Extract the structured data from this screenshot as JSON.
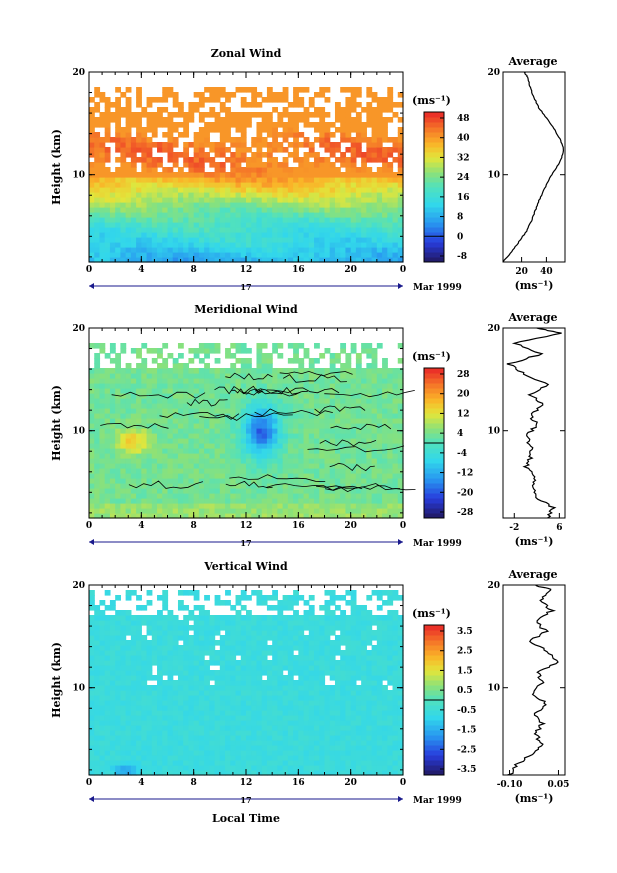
{
  "figure": {
    "shared_xlabel": "Local Time",
    "date_label": "Mar 1999",
    "day_label": "17",
    "average_title": "Average",
    "unit_label": "(ms⁻¹)",
    "ylabel": "Height (km)"
  },
  "chart_data": [
    {
      "type": "heatmap",
      "title": "Zonal Wind",
      "xlabel": "Local Time",
      "ylabel": "Height (km)",
      "x_ticks": [
        "0",
        "4",
        "8",
        "12",
        "16",
        "20",
        "0"
      ],
      "y_ticks": [
        "20",
        "10"
      ],
      "xlim": [
        0,
        24
      ],
      "ylim": [
        1.5,
        20
      ],
      "colorbar": {
        "label": "(ms⁻¹)",
        "ticks": [
          "48",
          "40",
          "32",
          "24",
          "16",
          "8",
          "0",
          "-8"
        ],
        "range": [
          -8,
          52
        ]
      },
      "missing_data_above_km": 16,
      "profile": {
        "title": "Average",
        "xlabel": "(ms⁻¹)",
        "x_ticks": [
          "20",
          "40"
        ],
        "xlim": [
          5,
          55
        ],
        "y_ticks": [
          "20",
          "10"
        ],
        "points": [
          [
            5,
            1.5
          ],
          [
            12,
            2.5
          ],
          [
            18,
            3.5
          ],
          [
            24,
            4.5
          ],
          [
            28,
            5.5
          ],
          [
            31,
            6.5
          ],
          [
            34,
            7.5
          ],
          [
            38,
            8.5
          ],
          [
            42,
            9.5
          ],
          [
            47,
            10.5
          ],
          [
            52,
            11.5
          ],
          [
            54,
            12.5
          ],
          [
            51,
            13.5
          ],
          [
            46,
            14.5
          ],
          [
            40,
            15.5
          ],
          [
            34,
            16.5
          ],
          [
            30,
            17.5
          ],
          [
            27,
            18.5
          ],
          [
            25,
            19.5
          ],
          [
            22,
            20
          ]
        ]
      }
    },
    {
      "type": "heatmap",
      "title": "Meridional Wind",
      "xlabel": "Local Time",
      "ylabel": "Height (km)",
      "x_ticks": [
        "0",
        "4",
        "8",
        "12",
        "16",
        "20",
        "0"
      ],
      "y_ticks": [
        "20",
        "10"
      ],
      "xlim": [
        0,
        24
      ],
      "ylim": [
        1.5,
        20
      ],
      "colorbar": {
        "label": "(ms⁻¹)",
        "ticks": [
          "28",
          "20",
          "12",
          "4",
          "-4",
          "-12",
          "-20",
          "-28"
        ],
        "range": [
          -32,
          32
        ]
      },
      "missing_data_above_km": 16,
      "profile": {
        "title": "Average",
        "xlabel": "(ms⁻¹)",
        "x_ticks": [
          "-2",
          "6"
        ],
        "xlim": [
          -4,
          7
        ],
        "y_ticks": [
          "20",
          "10"
        ],
        "points": [
          [
            4,
            1.5
          ],
          [
            5,
            2.5
          ],
          [
            2,
            3.5
          ],
          [
            1,
            4.5
          ],
          [
            2,
            5.5
          ],
          [
            0,
            6.5
          ],
          [
            1,
            7.5
          ],
          [
            1,
            8.5
          ],
          [
            0,
            9.5
          ],
          [
            2,
            10.5
          ],
          [
            1,
            11.5
          ],
          [
            3,
            12.5
          ],
          [
            1,
            13.5
          ],
          [
            4,
            14.5
          ],
          [
            0,
            15.5
          ],
          [
            -3,
            16.5
          ],
          [
            3,
            17.5
          ],
          [
            -2,
            18.5
          ],
          [
            6,
            19.5
          ],
          [
            2,
            20
          ]
        ]
      }
    },
    {
      "type": "heatmap",
      "title": "Vertical Wind",
      "xlabel": "Local Time",
      "ylabel": "Height (km)",
      "x_ticks": [
        "0",
        "4",
        "8",
        "12",
        "16",
        "20",
        "0"
      ],
      "y_ticks": [
        "20",
        "10"
      ],
      "xlim": [
        0,
        24
      ],
      "ylim": [
        1.5,
        20
      ],
      "colorbar": {
        "label": "(ms⁻¹)",
        "ticks": [
          "3.5",
          "2.5",
          "1.5",
          "0.5",
          "-0.5",
          "-1.5",
          "-2.5",
          "-3.5"
        ],
        "range": [
          -4,
          4
        ]
      },
      "missing_data_above_km": 17,
      "profile": {
        "title": "Average",
        "xlabel": "(ms⁻¹)",
        "x_ticks": [
          "-0.10",
          "0.05"
        ],
        "xlim": [
          -0.12,
          0.07
        ],
        "y_ticks": [
          "20",
          "10"
        ],
        "points": [
          [
            -0.1,
            1.5
          ],
          [
            -0.08,
            2.5
          ],
          [
            -0.03,
            3.5
          ],
          [
            0.0,
            4.5
          ],
          [
            -0.02,
            5.5
          ],
          [
            0.0,
            6.5
          ],
          [
            -0.02,
            7.5
          ],
          [
            0.01,
            8.5
          ],
          [
            -0.03,
            9.5
          ],
          [
            0.0,
            10.5
          ],
          [
            -0.01,
            11.5
          ],
          [
            0.05,
            12.5
          ],
          [
            0.02,
            13.5
          ],
          [
            -0.04,
            14.5
          ],
          [
            0.01,
            15.5
          ],
          [
            -0.02,
            16.5
          ],
          [
            0.03,
            17.5
          ],
          [
            -0.01,
            18.5
          ],
          [
            0.03,
            19.5
          ],
          [
            -0.02,
            20
          ]
        ]
      }
    }
  ]
}
